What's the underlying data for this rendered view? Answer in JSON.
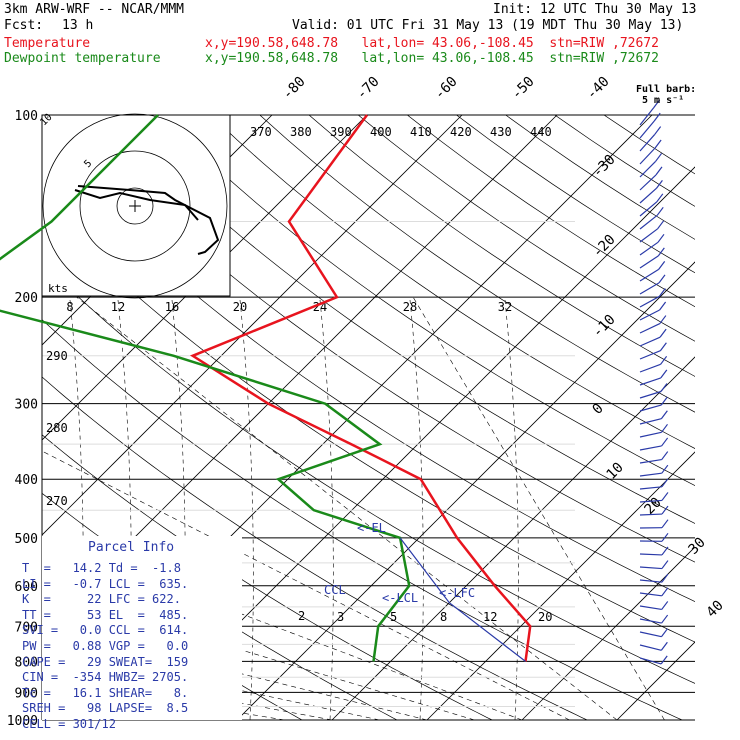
{
  "header": {
    "model": "3km ARW-WRF -- NCAR/MMM",
    "init": "Init: 12 UTC Thu 30 May 13",
    "fcst_label": "Fcst:",
    "fcst_value": "13 h",
    "valid": "Valid: 01 UTC Fri 31 May 13 (19 MDT Thu 30 May 13)",
    "temp_label": "Temperature",
    "temp_info": "x,y=190.58,648.78   lat,lon= 43.06,-108.45  stn=RIW ,72672",
    "dew_label": "Dewpoint temperature",
    "dew_info": "x,y=190.58,648.78   lat,lon= 43.06,-108.45  stn=RIW ,72672"
  },
  "barb_key": {
    "line1": "Full barb:",
    "line2": "5 m s⁻¹"
  },
  "parcel": {
    "title": "Parcel Info",
    "rows": [
      "T  =   14.2 Td =  -1.8",
      "LI =   -0.7 LCL =  635.",
      "K  =     22 LFC = 622.",
      "TT =     53 EL  =  485.",
      "SVI =   0.0 CCL =  614.",
      "PW =   0.88 VGP =   0.0",
      "CAPE =   29 SWEAT=  159",
      "CIN =  -354 HWBZ= 2705.",
      "Tc =   16.1 SHEAR=   8.",
      "SREH =   98 LAPSE=  8.5",
      "CELL = 301/12"
    ]
  },
  "hodograph": {
    "kts_label": "kts",
    "speed_labels": [
      "8",
      "12",
      "16",
      "20",
      "24",
      "28",
      "32"
    ],
    "ring_labels": [
      "10",
      "5"
    ]
  },
  "chart_data": {
    "type": "line",
    "title": "",
    "xlabel": "",
    "ylabel": "",
    "pressure_ticks": [
      "100",
      "200",
      "300",
      "400",
      "500",
      "600",
      "700",
      "800",
      "900",
      "1000"
    ],
    "pressure_values": [
      100,
      200,
      300,
      400,
      500,
      600,
      700,
      800,
      900,
      1000
    ],
    "isotherm_labels": [
      "-80",
      "-70",
      "-60",
      "-50",
      "-40",
      "-30",
      "-20",
      "-10",
      "0",
      "10",
      "20",
      "30",
      "40"
    ],
    "theta_labels": [
      "370",
      "380",
      "390",
      "400",
      "410",
      "420",
      "430",
      "440"
    ],
    "left_theta_labels": [
      "290",
      "280",
      "270"
    ],
    "mixing_ratio_labels": [
      "2",
      "3",
      "5",
      "8",
      "12",
      "20"
    ],
    "markers": [
      "<-EL",
      "CCL",
      "<-LCL",
      "<-LFC"
    ],
    "series": [
      {
        "name": "Temperature",
        "color": "#e8141e",
        "points": [
          [
            100,
            -60
          ],
          [
            150,
            -57
          ],
          [
            200,
            -44
          ],
          [
            250,
            -53
          ],
          [
            300,
            -40
          ],
          [
            350,
            -27
          ],
          [
            400,
            -16
          ],
          [
            500,
            -6
          ],
          [
            600,
            3
          ],
          [
            700,
            11
          ],
          [
            800,
            14.2
          ]
        ]
      },
      {
        "name": "Dewpoint temperature",
        "color": "#1a8a1a",
        "points": [
          [
            100,
            -82
          ],
          [
            150,
            -82
          ],
          [
            200,
            -85
          ],
          [
            250,
            -55
          ],
          [
            300,
            -34
          ],
          [
            350,
            -24
          ],
          [
            400,
            -31
          ],
          [
            450,
            -24
          ],
          [
            500,
            -12
          ],
          [
            600,
            -6
          ],
          [
            700,
            -5
          ],
          [
            800,
            -1.8
          ]
        ]
      }
    ]
  }
}
